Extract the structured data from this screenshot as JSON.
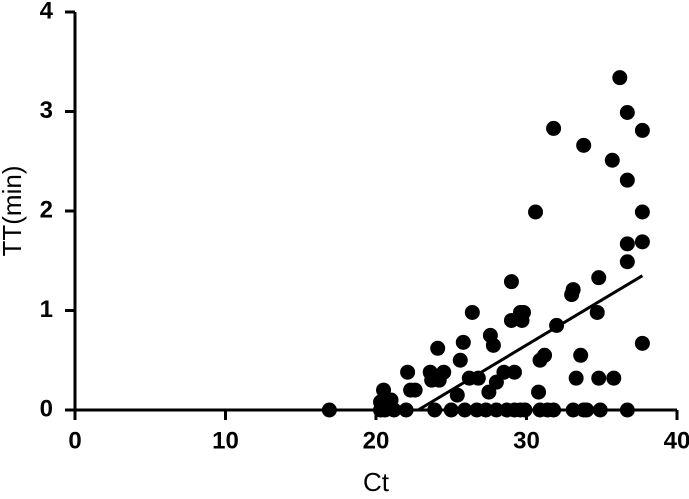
{
  "chart_data": {
    "type": "scatter",
    "x_label": "Ct",
    "y_label": "TT(min)",
    "xlim": [
      0,
      40
    ],
    "ylim": [
      0,
      4
    ],
    "xticks": [
      0,
      10,
      20,
      30,
      40
    ],
    "yticks": [
      0,
      1,
      2,
      3,
      4
    ],
    "color": "#000000",
    "x": [
      16.9,
      20.3,
      20.5,
      20.3,
      21.0,
      21.2,
      20.6,
      22.1,
      22.3,
      22.6,
      22.0,
      23.6,
      23.7,
      24.1,
      24.5,
      24.2,
      23.9,
      25.0,
      25.4,
      25.6,
      25.8,
      25.9,
      26.2,
      26.4,
      26.8,
      26.7,
      27.3,
      27.5,
      27.6,
      27.8,
      28.0,
      28.0,
      28.5,
      29.0,
      29.0,
      29.2,
      28.7,
      29.2,
      29.6,
      29.8,
      29.7,
      29.6,
      29.9,
      30.6,
      30.8,
      30.9,
      31.2,
      30.9,
      31.4,
      31.8,
      32.0,
      31.8,
      33.0,
      33.1,
      33.3,
      33.6,
      33.1,
      33.8,
      33.8,
      34.0,
      34.8,
      34.7,
      34.8,
      34.9,
      35.7,
      35.8,
      36.2,
      36.7,
      36.7,
      36.7,
      36.7,
      36.7,
      37.7,
      37.7,
      37.7,
      37.7
    ],
    "y": [
      0,
      0,
      0.2,
      0.08,
      0.1,
      0,
      0,
      0.38,
      0.2,
      0.2,
      0,
      0.38,
      0.3,
      0.62,
      0.38,
      0.3,
      0,
      0,
      0.15,
      0.5,
      0.68,
      0,
      0.32,
      0.98,
      0.32,
      0,
      0,
      0.18,
      0.75,
      0.65,
      0.28,
      0,
      0.38,
      1.29,
      0.9,
      0.38,
      0,
      0,
      0.98,
      0.98,
      0.9,
      0,
      0,
      1.99,
      0.18,
      0.5,
      0.55,
      0,
      0,
      2.83,
      0.85,
      0,
      1.16,
      1.21,
      0.32,
      0.55,
      0,
      0,
      2.66,
      0,
      1.33,
      0.98,
      0.32,
      0,
      2.51,
      0.32,
      3.34,
      2.99,
      2.31,
      1.49,
      1.67,
      0,
      2.81,
      1.99,
      1.69,
      0.67
    ],
    "fit_line": {
      "x": [
        22.8,
        37.7
      ],
      "y": [
        0,
        1.35
      ]
    }
  }
}
